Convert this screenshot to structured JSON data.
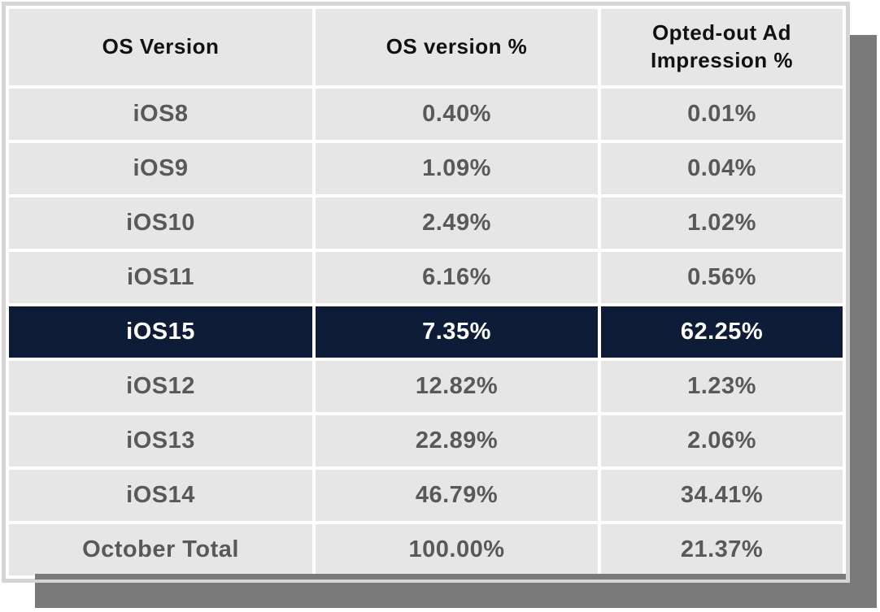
{
  "chart_data": {
    "type": "table",
    "title": "",
    "columns": [
      "OS Version",
      "OS version %",
      "Opted-out Ad Impression %"
    ],
    "rows": [
      [
        "iOS8",
        "0.40%",
        "0.01%"
      ],
      [
        "iOS9",
        "1.09%",
        "0.04%"
      ],
      [
        "iOS10",
        "2.49%",
        "1.02%"
      ],
      [
        "iOS11",
        "6.16%",
        "0.56%"
      ],
      [
        "iOS15",
        "7.35%",
        "62.25%"
      ],
      [
        "iOS12",
        "12.82%",
        "1.23%"
      ],
      [
        "iOS13",
        "22.89%",
        "2.06%"
      ],
      [
        "iOS14",
        "46.79%",
        "34.41%"
      ],
      [
        "October Total",
        "100.00%",
        "21.37%"
      ]
    ],
    "highlighted_row_index": 4,
    "highlighted_row_label": "iOS15",
    "layout_hints": {
      "gridlines": "white separators between light gray cells",
      "shadow": "offset solid gray rectangle behind card, down-right"
    }
  },
  "colors": {
    "cell_bg": "#e6e6e7",
    "grid_white": "#ffffff",
    "frame_border": "#d5d5d5",
    "shadow": "#7a7a7a",
    "highlight_bg": "#0e1c38",
    "highlight_text": "#ffffff",
    "header_text": "#111111",
    "cell_text": "#58595b"
  }
}
